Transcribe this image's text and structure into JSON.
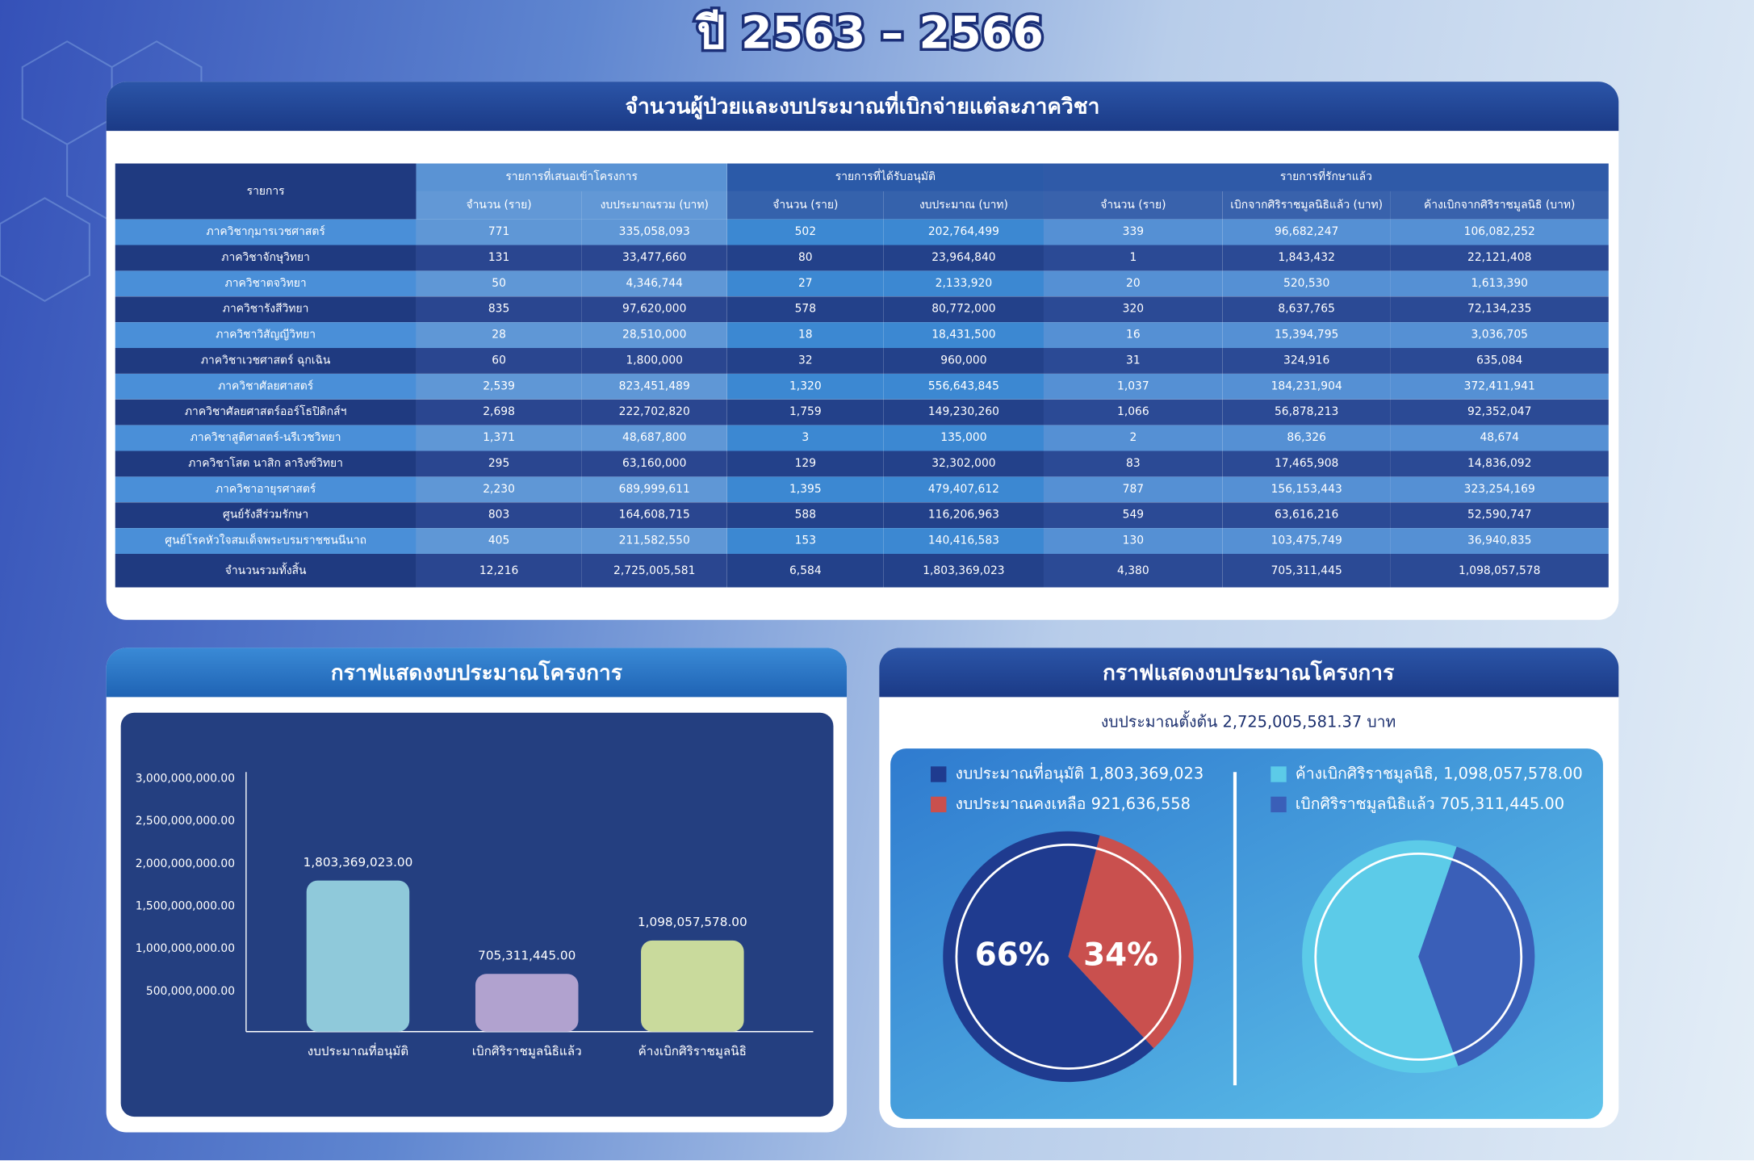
{
  "title": "ปี 2563 – 2566",
  "table": {
    "title": "จำนวนผู้ป่วยและงบประมาณที่เบิกจ่ายแต่ละภาควิชา",
    "header_groups": [
      "รายการ",
      "รายการที่เสนอเข้าโครงการ",
      "รายการที่ได้รับอนุมัติ",
      "รายการที่รักษาแล้ว"
    ],
    "columns": [
      "จำนวน (ราย)",
      "งบประมาณรวม (บาท)",
      "จำนวน (ราย)",
      "งบประมาณ (บาท)",
      "จำนวน (ราย)",
      "เบิกจากศิริราชมูลนิธิแล้ว (บาท)",
      "ค้างเบิกจากศิริราชมูลนิธิ (บาท)"
    ],
    "rows": [
      [
        "ภาควิชากุมารเวชศาสตร์",
        "771",
        "335,058,093",
        "502",
        "202,764,499",
        "339",
        "96,682,247",
        "106,082,252"
      ],
      [
        "ภาควิชาจักษุวิทยา",
        "131",
        "33,477,660",
        "80",
        "23,964,840",
        "1",
        "1,843,432",
        "22,121,408"
      ],
      [
        "ภาควิชาตจวิทยา",
        "50",
        "4,346,744",
        "27",
        "2,133,920",
        "20",
        "520,530",
        "1,613,390"
      ],
      [
        "ภาควิชารังสีวิทยา",
        "835",
        "97,620,000",
        "578",
        "80,772,000",
        "320",
        "8,637,765",
        "72,134,235"
      ],
      [
        "ภาควิชาวิสัญญีวิทยา",
        "28",
        "28,510,000",
        "18",
        "18,431,500",
        "16",
        "15,394,795",
        "3,036,705"
      ],
      [
        "ภาควิชาเวชศาสตร์ ฉุกเฉิน",
        "60",
        "1,800,000",
        "32",
        "960,000",
        "31",
        "324,916",
        "635,084"
      ],
      [
        "ภาควิชาศัลยศาสตร์",
        "2,539",
        "823,451,489",
        "1,320",
        "556,643,845",
        "1,037",
        "184,231,904",
        "372,411,941"
      ],
      [
        "ภาควิชาศัลยศาสตร์ออร์โธปิดิกส์ฯ",
        "2,698",
        "222,702,820",
        "1,759",
        "149,230,260",
        "1,066",
        "56,878,213",
        "92,352,047"
      ],
      [
        "ภาควิชาสูติศาสตร์-นรีเวชวิทยา",
        "1,371",
        "48,687,800",
        "3",
        "135,000",
        "2",
        "86,326",
        "48,674"
      ],
      [
        "ภาควิชาโสต นาสิก ลาริงซ์วิทยา",
        "295",
        "63,160,000",
        "129",
        "32,302,000",
        "83",
        "17,465,908",
        "14,836,092"
      ],
      [
        "ภาควิชาอายุรศาสตร์",
        "2,230",
        "689,999,611",
        "1,395",
        "479,407,612",
        "787",
        "156,153,443",
        "323,254,169"
      ],
      [
        "ศูนย์รังสีร่วมรักษา",
        "803",
        "164,608,715",
        "588",
        "116,206,963",
        "549",
        "63,616,216",
        "52,590,747"
      ],
      [
        "ศูนย์โรคหัวใจสมเด็จพระบรมราชชนนีนาถ",
        "405",
        "211,582,550",
        "153",
        "140,416,583",
        "130",
        "103,475,749",
        "36,940,835"
      ]
    ],
    "total": [
      "จำนวนรวมทั้งสิ้น",
      "12,216",
      "2,725,005,581",
      "6,584",
      "1,803,369,023",
      "4,380",
      "705,311,445",
      "1,098,057,578"
    ]
  },
  "chart_data": [
    {
      "type": "bar",
      "title": "กราฟแสดงงบประมาณโครงการ",
      "categories": [
        "งบประมาณที่อนุมัติ",
        "เบิกศิริราชมูลนิธิแล้ว",
        "ค้างเบิกศิริราชมูลนิธิ"
      ],
      "values": [
        1803369023,
        705311445,
        1098057578
      ],
      "value_labels": [
        "1,803,369,023.00",
        "705,311,445.00",
        "1,098,057,578.00"
      ],
      "colors": [
        "#8fc9da",
        "#b1a2cf",
        "#c9da9c"
      ],
      "ylim": [
        0,
        3000000000
      ],
      "yticks": [
        {
          "value": 500000000,
          "label": "500,000,000.00"
        },
        {
          "value": 1000000000,
          "label": "1,000,000,000.00"
        },
        {
          "value": 1500000000,
          "label": "1,500,000,000.00"
        },
        {
          "value": 2000000000,
          "label": "2,000,000,000.00"
        },
        {
          "value": 2500000000,
          "label": "2,500,000,000.00"
        },
        {
          "value": 3000000000,
          "label": "3,000,000,000.00"
        }
      ]
    },
    {
      "type": "pie",
      "title": "กราฟแสดงงบประมาณโครงการ",
      "subtitle": "งบประมาณตั้งต้น 2,725,005,581.37 บาท",
      "categories": [
        "งบประมาณที่อนุมัติ 1,803,369,023",
        "งบประมาณคงเหลือ 921,636,558"
      ],
      "values": [
        66,
        34
      ],
      "value_labels": [
        "66%",
        "34%"
      ],
      "colors": [
        "#1f3b8f",
        "#c9504e"
      ]
    },
    {
      "type": "pie",
      "categories": [
        "ค้างเบิกศิริราชมูลนิธิ, 1,098,057,578.00",
        "เบิกศิริราชมูลนิธิแล้ว 705,311,445.00"
      ],
      "values": [
        1098057578,
        705311445
      ],
      "colors": [
        "#5ccbe8",
        "#3a5fb8"
      ]
    }
  ]
}
